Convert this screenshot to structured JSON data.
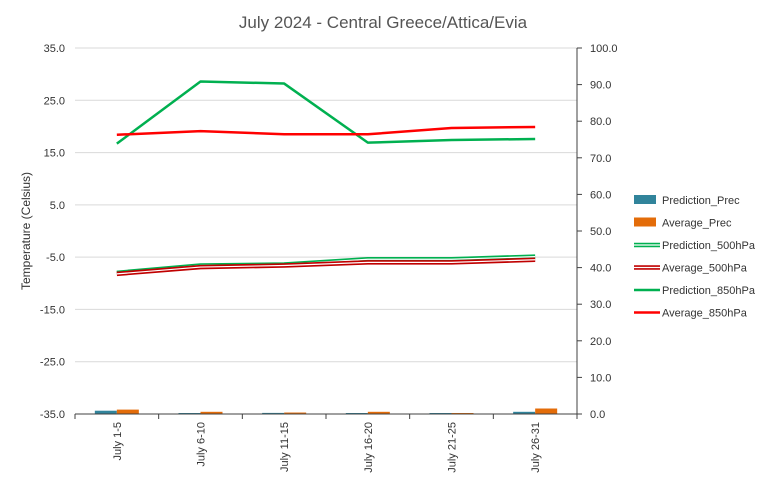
{
  "chart_data": {
    "type": "line",
    "title": "July 2024 - Central Greece/Attica/Evia",
    "ylabel": "Temperature (Celsius)",
    "y2label": "",
    "ylim": [
      -35,
      35
    ],
    "y2lim": [
      0,
      100
    ],
    "yticks": [
      "35.0",
      "25.0",
      "15.0",
      "5.0",
      "-5.0",
      "-15.0",
      "-25.0",
      "-35.0"
    ],
    "y2ticks": [
      "100.0",
      "90.0",
      "80.0",
      "70.0",
      "60.0",
      "50.0",
      "40.0",
      "30.0",
      "20.0",
      "10.0",
      "0.0"
    ],
    "categories": [
      "July 1-5",
      "July 6-10",
      "July 11-15",
      "July 16-20",
      "July 21-25",
      "July 26-31"
    ],
    "grid": true,
    "legend_position": "right",
    "bar_series": [
      {
        "name": "Prediction_Prec",
        "color": "#31849b",
        "axis": "right",
        "values": [
          0.9,
          0.1,
          0.3,
          0.1,
          0.1,
          0.6
        ]
      },
      {
        "name": "Average_Prec",
        "color": "#e36c09",
        "axis": "right",
        "values": [
          1.2,
          0.6,
          0.4,
          0.6,
          0.2,
          1.5
        ]
      }
    ],
    "line_series": [
      {
        "name": "Prediction_500hPa",
        "color": "#00b050",
        "style": "double",
        "axis": "left",
        "values": [
          -8.0,
          -6.6,
          -6.4,
          -5.4,
          -5.4,
          -4.9
        ]
      },
      {
        "name": "Average_500hPa",
        "color": "#c00000",
        "style": "double",
        "axis": "left",
        "values": [
          -8.2,
          -6.9,
          -6.6,
          -6.0,
          -6.0,
          -5.5
        ]
      },
      {
        "name": "Prediction_850hPa",
        "color": "#00b050",
        "style": "solid",
        "axis": "left",
        "values": [
          16.7,
          28.6,
          28.2,
          16.9,
          17.4,
          17.6
        ]
      },
      {
        "name": "Average_850hPa",
        "color": "#ff0000",
        "style": "solid",
        "axis": "left",
        "values": [
          18.4,
          19.1,
          18.5,
          18.5,
          19.7,
          19.9
        ]
      }
    ]
  }
}
